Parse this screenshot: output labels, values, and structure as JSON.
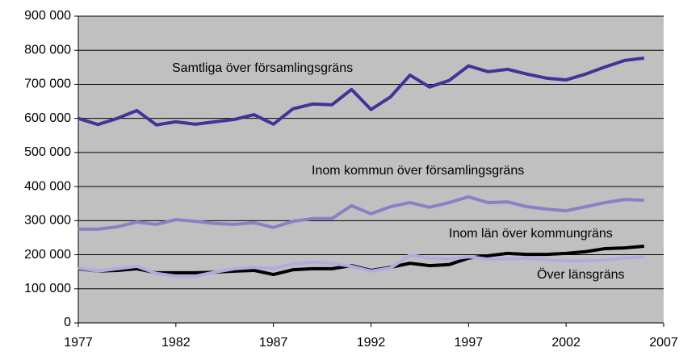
{
  "chart_data": {
    "type": "line",
    "x": [
      1977,
      1978,
      1979,
      1980,
      1981,
      1982,
      1983,
      1984,
      1985,
      1986,
      1987,
      1988,
      1989,
      1990,
      1991,
      1992,
      1993,
      1994,
      1995,
      1996,
      1997,
      1998,
      1999,
      2000,
      2001,
      2002,
      2003,
      2004,
      2005,
      2006
    ],
    "series": [
      {
        "name": "Samtliga över församlingsgräns",
        "color": "#3f3598",
        "values": [
          600000,
          582000,
          600000,
          623000,
          581000,
          590000,
          583000,
          590000,
          597000,
          611000,
          583000,
          628000,
          642000,
          640000,
          685000,
          626000,
          663000,
          727000,
          692000,
          711000,
          754000,
          737000,
          744000,
          730000,
          718000,
          713000,
          730000,
          751000,
          770000,
          777000
        ]
      },
      {
        "name": "Inom kommun över församlingsgräns",
        "color": "#8a80c6",
        "values": [
          275000,
          275000,
          282000,
          296000,
          289000,
          303000,
          298000,
          292000,
          289000,
          294000,
          280000,
          298000,
          306000,
          306000,
          344000,
          320000,
          341000,
          353000,
          339000,
          353000,
          370000,
          353000,
          355000,
          341000,
          334000,
          329000,
          341000,
          353000,
          362000,
          360000
        ]
      },
      {
        "name": "Inom län över kommungräns",
        "color": "#000000",
        "values": [
          159000,
          152000,
          154000,
          159000,
          147000,
          147000,
          147000,
          149000,
          152000,
          154000,
          142000,
          156000,
          159000,
          159000,
          168000,
          154000,
          163000,
          175000,
          168000,
          171000,
          190000,
          197000,
          204000,
          201000,
          201000,
          204000,
          209000,
          218000,
          220000,
          225000
        ]
      },
      {
        "name": "Över länsgräns",
        "color": "#b3abdf",
        "values": [
          161000,
          152000,
          159000,
          166000,
          145000,
          137000,
          137000,
          149000,
          159000,
          163000,
          159000,
          173000,
          178000,
          175000,
          166000,
          152000,
          161000,
          199000,
          190000,
          187000,
          194000,
          187000,
          187000,
          190000,
          185000,
          182000,
          182000,
          185000,
          190000,
          194000
        ]
      }
    ],
    "xlim": [
      1977,
      2007
    ],
    "xticks": [
      1977,
      1982,
      1987,
      1992,
      1997,
      2002,
      2007
    ],
    "ylim": [
      0,
      900000
    ],
    "yticks": [
      0,
      {
        "value": 100000,
        "label": "100 000"
      },
      {
        "value": 200000,
        "label": "200 000"
      },
      {
        "value": 300000,
        "label": "300 000"
      },
      {
        "value": 400000,
        "label": "400 000"
      },
      {
        "value": 500000,
        "label": "500 000"
      },
      {
        "value": 600000,
        "label": "600 000"
      },
      {
        "value": 700000,
        "label": "700 000"
      },
      {
        "value": 800000,
        "label": "800 000"
      },
      {
        "value": 900000,
        "label": "900 000"
      }
    ],
    "grid": true,
    "background": "#c0c0c0"
  }
}
